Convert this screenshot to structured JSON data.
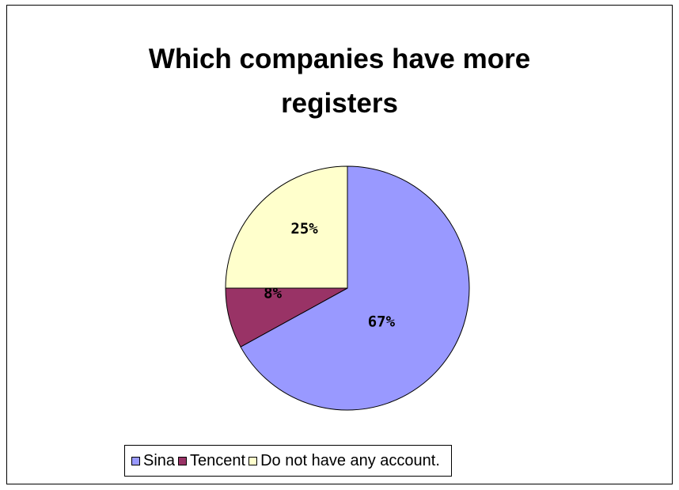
{
  "chart_data": {
    "type": "pie",
    "title": "Which companies have more registers",
    "title_lines": [
      "Which companies have more",
      "registers"
    ],
    "categories": [
      "Sina",
      "Tencent",
      "Do not have any account."
    ],
    "values": [
      67,
      8,
      25
    ],
    "labels": [
      "67%",
      "8%",
      "25%"
    ],
    "colors": [
      "#9999FF",
      "#993366",
      "#FFFFCC"
    ],
    "legend_position": "bottom"
  }
}
